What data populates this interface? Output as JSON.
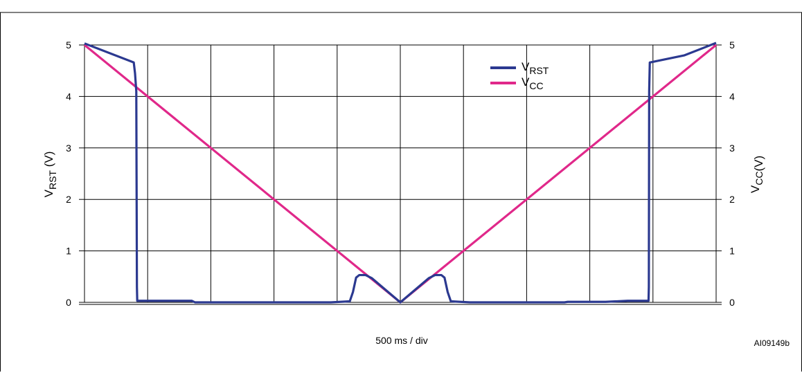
{
  "chart_data": {
    "type": "line",
    "xlabel": "500 ms / div",
    "figure_id": "AI09149b",
    "y_left": {
      "label_main": "V",
      "label_sub": "RST",
      "label_unit": "(V)",
      "ylim": [
        0,
        5
      ],
      "ticks": [
        "0",
        "1",
        "2",
        "3",
        "4",
        "5"
      ]
    },
    "y_right": {
      "label_main": "V",
      "label_sub": "CC",
      "label_unit": "(V)",
      "ylim": [
        0,
        5
      ],
      "ticks": [
        "0",
        "1",
        "2",
        "3",
        "4",
        "5"
      ]
    },
    "x_divisions": 10,
    "x_unit_per_div_ms": 500,
    "xlim_div": [
      0,
      10
    ],
    "grid": true,
    "legend": {
      "placement": "top-right",
      "entries": [
        {
          "main": "V",
          "sub": "RST",
          "color": "#2b3990"
        },
        {
          "main": "V",
          "sub": "CC",
          "color": "#e0288a"
        }
      ]
    },
    "series": [
      {
        "name": "VRST",
        "color": "#2b3990",
        "x": [
          0,
          0.78,
          0.8,
          0.82,
          0.83,
          0.85,
          0.86,
          1.7,
          1.75,
          7.6,
          7.65,
          8.25,
          8.6,
          8.9,
          9.0,
          9.15,
          9.35,
          9.5,
          10.0
        ],
        "y": [
          5.03,
          4.66,
          4.45,
          4.1,
          0.5,
          0.03,
          0.03,
          0.03,
          0.0,
          0.0,
          0.03,
          0.03,
          0.03,
          0.03,
          0.5,
          4.1,
          4.66,
          4.8,
          5.04
        ],
        "xv": [
          0,
          0.78,
          0.8,
          0.82,
          0.83,
          0.835,
          0.86,
          1.7,
          1.75,
          7.6,
          7.65,
          8.25,
          8.6,
          8.93,
          8.935,
          8.94,
          8.95,
          9.5,
          10.0
        ],
        "yv": [
          5.03,
          4.66,
          4.45,
          4.1,
          0.3,
          0.03,
          0.03,
          0.03,
          0.0,
          0.0,
          0.01,
          0.01,
          0.03,
          0.03,
          0.3,
          4.1,
          4.66,
          4.8,
          5.04
        ]
      },
      {
        "name": "VCC",
        "color": "#e0288a",
        "x": [
          0,
          5,
          10
        ],
        "y": [
          5.0,
          0.0,
          5.0
        ]
      }
    ],
    "vrst_center_bump": {
      "x": [
        3.9,
        4.2,
        4.25,
        4.3,
        4.35,
        4.45,
        4.55,
        5.0,
        5.45,
        5.55,
        5.65,
        5.7,
        5.75,
        5.8,
        6.1
      ],
      "y": [
        0.0,
        0.02,
        0.2,
        0.48,
        0.53,
        0.53,
        0.47,
        0.0,
        0.47,
        0.53,
        0.53,
        0.48,
        0.2,
        0.02,
        0.0
      ]
    }
  }
}
